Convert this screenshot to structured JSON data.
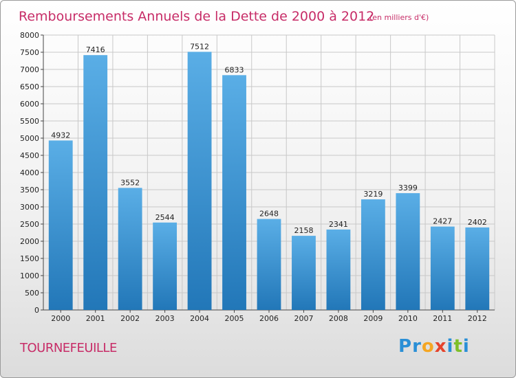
{
  "page": {
    "title": "Remboursements Annuels de la Dette de 2000 à 2012",
    "subtitle": "(en milliers d'€)",
    "town": "TOURNEFEUILLE",
    "logo": {
      "letters": [
        "P",
        "r",
        "o",
        "x",
        "i",
        "t",
        "i"
      ],
      "colors": [
        "#2a8fd6",
        "#2a8fd6",
        "#f5a623",
        "#e5432b",
        "#2a8fd6",
        "#7fbf2a",
        "#2a8fd6"
      ]
    }
  },
  "colors": {
    "bar_light": "#5aaee6",
    "bar_dark": "#2277b8",
    "title": "#c72c67"
  },
  "chart_data": {
    "type": "bar",
    "title": "Remboursements Annuels de la Dette de 2000 à 2012",
    "subtitle": "(en milliers d'€)",
    "categories": [
      "2000",
      "2001",
      "2002",
      "2003",
      "2004",
      "2005",
      "2006",
      "2007",
      "2008",
      "2009",
      "2010",
      "2011",
      "2012"
    ],
    "values": [
      4932,
      7416,
      3552,
      2544,
      7512,
      6833,
      2648,
      2158,
      2341,
      3219,
      3399,
      2427,
      2402
    ],
    "ylim": [
      0,
      8000
    ],
    "yticks": [
      0,
      500,
      1000,
      1500,
      2000,
      2500,
      3000,
      3500,
      4000,
      4500,
      5000,
      5500,
      6000,
      6500,
      7000,
      7500,
      8000
    ],
    "grid": true,
    "legend": "none"
  }
}
